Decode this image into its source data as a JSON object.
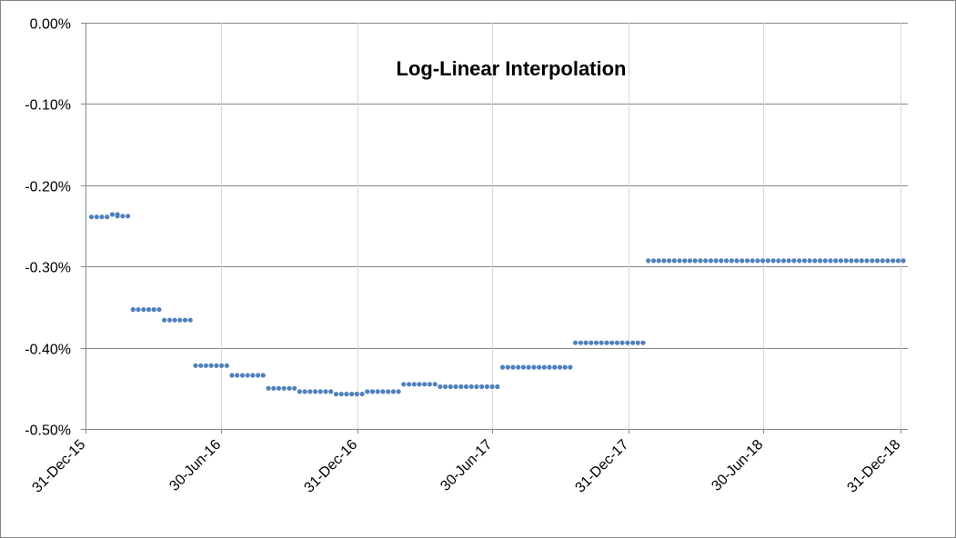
{
  "chart_data": {
    "type": "scatter",
    "title": "Log-Linear Interpolation",
    "xlabel": "",
    "ylabel": "",
    "x_axis": {
      "type": "date",
      "min": "2015-12-31",
      "max": "2019-01-10",
      "tick_values": [
        "2015-12-31",
        "2016-06-30",
        "2016-12-31",
        "2017-06-30",
        "2017-12-31",
        "2018-06-30",
        "2018-12-31"
      ],
      "tick_labels": [
        "31-Dec-15",
        "30-Jun-16",
        "31-Dec-16",
        "30-Jun-17",
        "31-Dec-17",
        "30-Jun-18",
        "31-Dec-18"
      ]
    },
    "y_axis": {
      "min": -0.5,
      "max": 0.0,
      "tick_values": [
        0.0,
        -0.1,
        -0.2,
        -0.3,
        -0.4,
        -0.5
      ],
      "tick_labels": [
        "0.00%",
        "-0.10%",
        "-0.20%",
        "-0.30%",
        "-0.40%",
        "-0.50%"
      ],
      "unit": "%"
    },
    "grid": true,
    "legend": "none",
    "series_color": "#4F81BD",
    "series": [
      {
        "segments": [
          {
            "start": "2016-01-08",
            "end": "2016-01-29",
            "value": -0.239
          },
          {
            "start": "2016-02-05",
            "end": "2016-02-12",
            "value": -0.236
          },
          {
            "start": "2016-02-12",
            "end": "2016-02-26",
            "value": -0.238
          },
          {
            "start": "2016-03-04",
            "end": "2016-04-08",
            "value": -0.353
          },
          {
            "start": "2016-04-15",
            "end": "2016-05-20",
            "value": -0.366
          },
          {
            "start": "2016-05-27",
            "end": "2016-07-08",
            "value": -0.422
          },
          {
            "start": "2016-07-15",
            "end": "2016-08-26",
            "value": -0.434
          },
          {
            "start": "2016-09-02",
            "end": "2016-10-07",
            "value": -0.45
          },
          {
            "start": "2016-10-14",
            "end": "2016-11-25",
            "value": -0.454
          },
          {
            "start": "2016-12-02",
            "end": "2017-01-06",
            "value": -0.457
          },
          {
            "start": "2017-01-13",
            "end": "2017-02-24",
            "value": -0.454
          },
          {
            "start": "2017-03-03",
            "end": "2017-04-14",
            "value": -0.445
          },
          {
            "start": "2017-04-21",
            "end": "2017-07-07",
            "value": -0.448
          },
          {
            "start": "2017-07-14",
            "end": "2017-10-13",
            "value": -0.424
          },
          {
            "start": "2017-10-20",
            "end": "2018-01-19",
            "value": -0.394
          },
          {
            "start": "2018-01-26",
            "end": "2019-01-10",
            "value": -0.293
          }
        ]
      }
    ]
  }
}
